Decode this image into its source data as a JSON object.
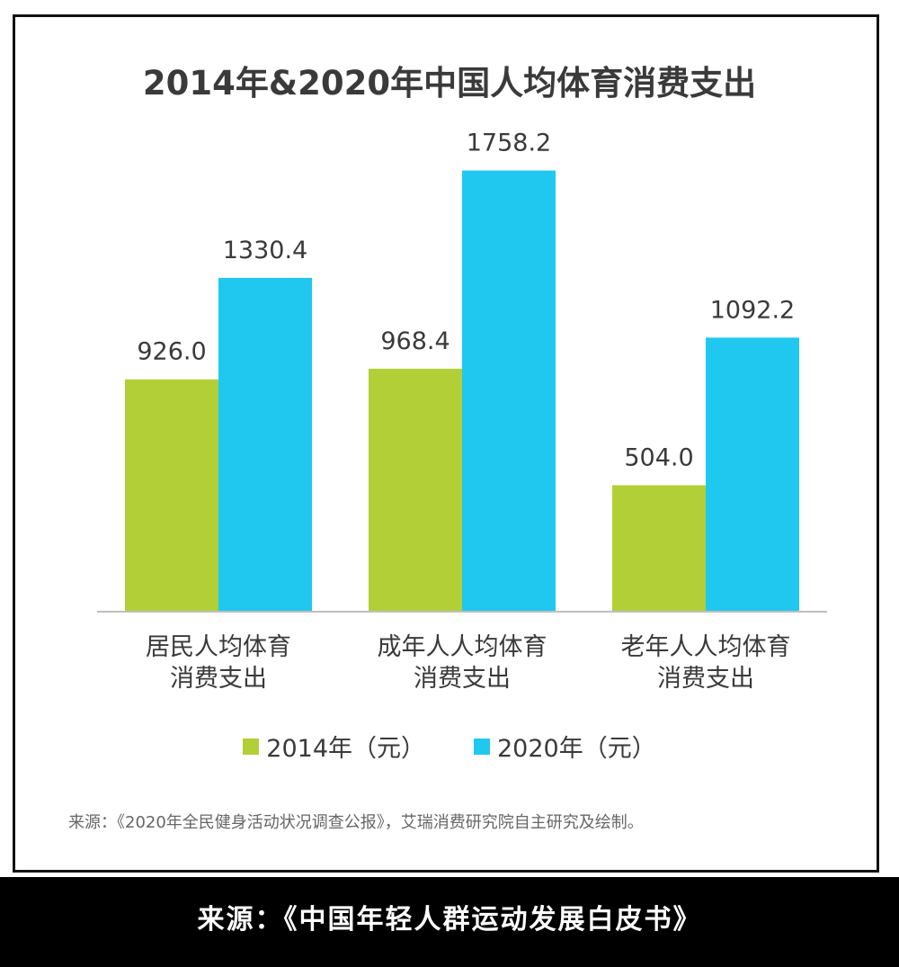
{
  "chart_data": {
    "type": "bar",
    "title": "2014年&2020年中国人均体育消费支出",
    "categories": [
      "居民人均体育\n消费支出",
      "成年人人均体育\n消费支出",
      "老年人人均体育\n消费支出"
    ],
    "series": [
      {
        "name": "2014年（元）",
        "values": [
          926.0,
          968.4,
          504.0
        ],
        "color": "#b2cf37"
      },
      {
        "name": "2020年（元）",
        "values": [
          1330.4,
          1758.2,
          1092.2
        ],
        "color": "#20c8f0"
      }
    ],
    "value_labels": [
      [
        "926.0",
        "968.4",
        "504.0"
      ],
      [
        "1330.4",
        "1758.2",
        "1092.2"
      ]
    ],
    "ylim": [
      0,
      1900
    ],
    "grid": false,
    "legend_position": "bottom"
  },
  "source_note": "来源：《2020年全民健身活动状况调查公报》，艾瑞消费研究院自主研究及绘制。",
  "caption": "来源：《中国年轻人群运动发展白皮书》"
}
